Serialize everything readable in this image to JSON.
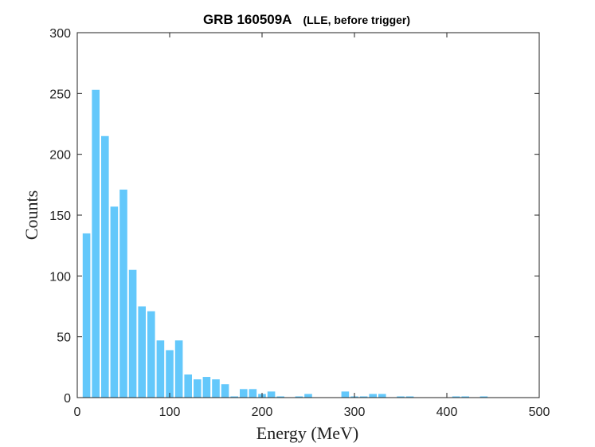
{
  "chart_data": {
    "type": "bar",
    "title": "GRB 160509A",
    "subtitle": "(LLE, before trigger)",
    "xlabel": "Energy (MeV)",
    "ylabel": "Counts",
    "xlim": [
      0,
      500
    ],
    "ylim": [
      0,
      300
    ],
    "xticks": [
      "0",
      "100",
      "200",
      "300",
      "400",
      "500"
    ],
    "yticks": [
      "0",
      "50",
      "100",
      "150",
      "200",
      "250",
      "300"
    ],
    "bin_width": 10,
    "bins": [
      {
        "x": 10,
        "value": 135
      },
      {
        "x": 20,
        "value": 253
      },
      {
        "x": 30,
        "value": 215
      },
      {
        "x": 40,
        "value": 157
      },
      {
        "x": 50,
        "value": 171
      },
      {
        "x": 60,
        "value": 105
      },
      {
        "x": 70,
        "value": 75
      },
      {
        "x": 80,
        "value": 71
      },
      {
        "x": 90,
        "value": 47
      },
      {
        "x": 100,
        "value": 39
      },
      {
        "x": 110,
        "value": 47
      },
      {
        "x": 120,
        "value": 19
      },
      {
        "x": 130,
        "value": 15
      },
      {
        "x": 140,
        "value": 17
      },
      {
        "x": 150,
        "value": 15
      },
      {
        "x": 160,
        "value": 11
      },
      {
        "x": 170,
        "value": 1
      },
      {
        "x": 180,
        "value": 7
      },
      {
        "x": 190,
        "value": 7
      },
      {
        "x": 200,
        "value": 3
      },
      {
        "x": 210,
        "value": 5
      },
      {
        "x": 220,
        "value": 1
      },
      {
        "x": 240,
        "value": 1
      },
      {
        "x": 250,
        "value": 3
      },
      {
        "x": 290,
        "value": 5
      },
      {
        "x": 300,
        "value": 1
      },
      {
        "x": 310,
        "value": 1
      },
      {
        "x": 320,
        "value": 3
      },
      {
        "x": 330,
        "value": 3
      },
      {
        "x": 350,
        "value": 1
      },
      {
        "x": 360,
        "value": 1
      },
      {
        "x": 410,
        "value": 1
      },
      {
        "x": 420,
        "value": 1
      },
      {
        "x": 440,
        "value": 1
      }
    ],
    "grid": false,
    "legend": "none",
    "colors": {
      "bar": "#63c8fb",
      "axes": "#222222"
    }
  }
}
